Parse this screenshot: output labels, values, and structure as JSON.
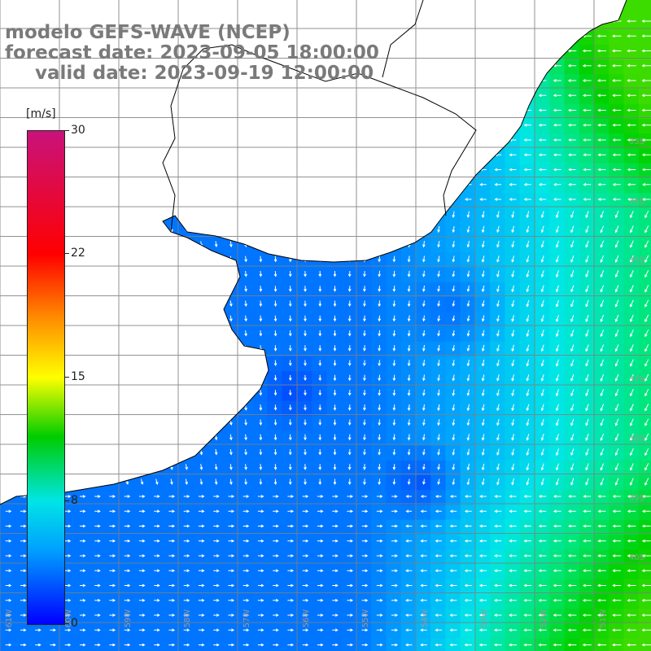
{
  "header": {
    "model": "modelo GEFS-WAVE (NCEP)",
    "forecast_date": "forecast date: 2023-09-05 18:00:00",
    "valid_date": "valid date: 2023-09-19 12:00:00"
  },
  "colorbar": {
    "units": "[m/s]",
    "ticks": [
      "30",
      "22",
      "15",
      "8",
      "0"
    ],
    "tick_values": [
      30,
      22,
      15,
      8,
      0
    ]
  },
  "map": {
    "lat_labels": [
      "33S",
      "34S",
      "35S",
      "37S",
      "38S",
      "39S",
      "40S"
    ],
    "lon_labels": [
      "61W",
      "60W",
      "59W",
      "58W",
      "57W",
      "56W",
      "55W",
      "54W",
      "53W",
      "52W",
      "51W"
    ],
    "colors": {
      "land": "#ffffff",
      "coast": "#000000",
      "grid": "#808080",
      "arrow": "#ffffff",
      "speed_low": "#0000ff",
      "speed_mid": "#00c8ff",
      "speed_high": "#00dd00"
    }
  }
}
